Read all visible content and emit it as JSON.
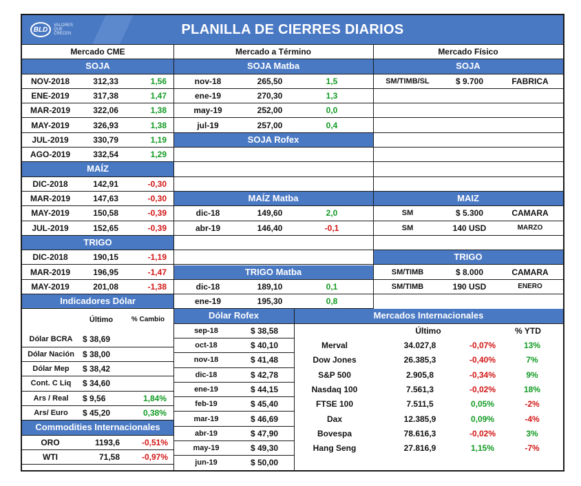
{
  "header": {
    "title": "PLANILLA DE CIERRES DIARIOS",
    "logo_text": "BLD",
    "logo_tagline": "VALORES QUE CRECEN"
  },
  "columns": {
    "cme": "Mercado CME",
    "termino": "Mercado a Término",
    "fisico": "Mercado Físico"
  },
  "cme": {
    "soja_title": "SOJA",
    "soja": [
      {
        "m": "NOV-2018",
        "p": "312,33",
        "c": "1,56"
      },
      {
        "m": "ENE-2019",
        "p": "317,38",
        "c": "1,47"
      },
      {
        "m": "MAR-2019",
        "p": "322,06",
        "c": "1,38"
      },
      {
        "m": "MAY-2019",
        "p": "326,93",
        "c": "1,38"
      },
      {
        "m": "JUL-2019",
        "p": "330,79",
        "c": "1,19"
      },
      {
        "m": "AGO-2019",
        "p": "332,54",
        "c": "1,29"
      }
    ],
    "maiz_title": "MAÍZ",
    "maiz": [
      {
        "m": "DIC-2018",
        "p": "142,91",
        "c": "-0,30"
      },
      {
        "m": "MAR-2019",
        "p": "147,63",
        "c": "-0,30"
      },
      {
        "m": "MAY-2019",
        "p": "150,58",
        "c": "-0,39"
      },
      {
        "m": "JUL-2019",
        "p": "152,65",
        "c": "-0,39"
      }
    ],
    "trigo_title": "TRIGO",
    "trigo": [
      {
        "m": "DIC-2018",
        "p": "190,15",
        "c": "-1,19"
      },
      {
        "m": "MAR-2019",
        "p": "196,95",
        "c": "-1,47"
      },
      {
        "m": "MAY-2019",
        "p": "201,08",
        "c": "-1,38"
      }
    ]
  },
  "termino": {
    "soja_title": "SOJA Matba",
    "soja": [
      {
        "m": "nov-18",
        "p": "265,50",
        "c": "1,5"
      },
      {
        "m": "ene-19",
        "p": "270,30",
        "c": "1,3"
      },
      {
        "m": "may-19",
        "p": "252,00",
        "c": "0,0"
      },
      {
        "m": "jul-19",
        "p": "257,00",
        "c": "0,4"
      }
    ],
    "rofex_title": "SOJA Rofex",
    "maiz_title": "MAÍZ Matba",
    "maiz": [
      {
        "m": "dic-18",
        "p": "149,60",
        "c": "2,0"
      },
      {
        "m": "abr-19",
        "p": "146,40",
        "c": "-0,1"
      }
    ],
    "trigo_title": "TRIGO Matba",
    "trigo": [
      {
        "m": "dic-18",
        "p": "189,10",
        "c": "0,1"
      },
      {
        "m": "ene-19",
        "p": "195,30",
        "c": "0,8"
      }
    ]
  },
  "fisico": {
    "soja_title": "SOJA",
    "soja": [
      {
        "a": "SM/TIMB/SL",
        "b": "$ 9.700",
        "c": "FABRICA"
      }
    ],
    "maiz_title": "MAIZ",
    "maiz": [
      {
        "a": "SM",
        "b": "$ 5.300",
        "c": "CAMARA"
      },
      {
        "a": "SM",
        "b": "140 USD",
        "c": "MARZO"
      }
    ],
    "trigo_title": "TRIGO",
    "trigo": [
      {
        "a": "SM/TIMB",
        "b": "$ 8.000",
        "c": "CAMARA"
      },
      {
        "a": "SM/TIMB",
        "b": "190 USD",
        "c": "ENERO"
      }
    ]
  },
  "dolar": {
    "title": "Indicadores Dólar",
    "col_last": "Último",
    "col_change": "% Cambio",
    "rows": [
      {
        "n": "Dólar BCRA",
        "v": "$ 38,69",
        "c": ""
      },
      {
        "n": "Dólar Nación",
        "v": "$ 38,00",
        "c": ""
      },
      {
        "n": "Dólar Mep",
        "v": "$ 38,42",
        "c": ""
      },
      {
        "n": "Cont. C Liq",
        "v": "$ 34,60",
        "c": ""
      },
      {
        "n": "Ars / Real",
        "v": "$ 9,56",
        "c": "1,84%"
      },
      {
        "n": "Ars/ Euro",
        "v": "$ 45,20",
        "c": "0,38%"
      }
    ]
  },
  "commodities": {
    "title": "Commodities Internacionales",
    "rows": [
      {
        "n": "ORO",
        "v": "1193,6",
        "c": "-0,51%"
      },
      {
        "n": "WTI",
        "v": "71,58",
        "c": "-0,97%"
      }
    ]
  },
  "rofex": {
    "title": "Dólar Rofex",
    "rows": [
      {
        "m": "sep-18",
        "v": "$ 38,58"
      },
      {
        "m": "oct-18",
        "v": "$ 40,10"
      },
      {
        "m": "nov-18",
        "v": "$ 41,48"
      },
      {
        "m": "dic-18",
        "v": "$ 42,78"
      },
      {
        "m": "ene-19",
        "v": "$ 44,15"
      },
      {
        "m": "feb-19",
        "v": "$ 45,40"
      },
      {
        "m": "mar-19",
        "v": "$ 46,69"
      },
      {
        "m": "abr-19",
        "v": "$ 47,90"
      },
      {
        "m": "may-19",
        "v": "$ 49,30"
      },
      {
        "m": "jun-19",
        "v": "$ 50,00"
      }
    ]
  },
  "intl": {
    "title": "Mercados Internacionales",
    "col_last": "Último",
    "col_ytd": "% YTD",
    "rows": [
      {
        "n": "Merval",
        "v": "34.027,8",
        "c": "-0,07%",
        "y": "13%"
      },
      {
        "n": "Dow Jones",
        "v": "26.385,3",
        "c": "-0,40%",
        "y": "7%"
      },
      {
        "n": "S&P 500",
        "v": "2.905,8",
        "c": "-0,34%",
        "y": "9%"
      },
      {
        "n": "Nasdaq 100",
        "v": "7.561,3",
        "c": "-0,02%",
        "y": "18%"
      },
      {
        "n": "FTSE 100",
        "v": "7.511,5",
        "c": "0,05%",
        "y": "-2%"
      },
      {
        "n": "Dax",
        "v": "12.385,9",
        "c": "0,09%",
        "y": "-4%"
      },
      {
        "n": "Bovespa",
        "v": "78.616,3",
        "c": "-0,02%",
        "y": "3%"
      },
      {
        "n": "Hang Seng",
        "v": "27.816,9",
        "c": "1,15%",
        "y": "-7%"
      }
    ]
  }
}
